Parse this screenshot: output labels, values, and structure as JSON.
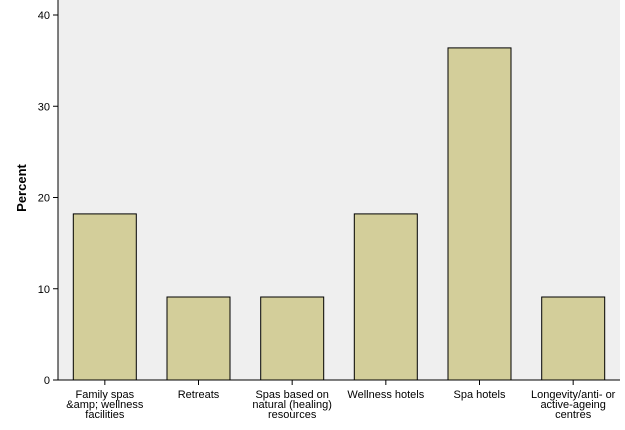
{
  "chart_data": {
    "type": "bar",
    "title": "",
    "xlabel": "",
    "ylabel": "Percent",
    "ylim": [
      0,
      40
    ],
    "yticks": [
      0,
      10,
      20,
      30,
      40
    ],
    "grid": false,
    "categories": [
      [
        "Family spas",
        "&amp; wellness",
        "facilities"
      ],
      [
        "Retreats"
      ],
      [
        "Spas based on",
        "natural (healing)",
        "resources"
      ],
      [
        "Wellness hotels"
      ],
      [
        "Spa hotels"
      ],
      [
        "Longevity/anti- or",
        "active-ageing",
        "centres"
      ]
    ],
    "values": [
      18.2,
      9.1,
      9.1,
      18.2,
      36.4,
      9.1
    ],
    "colors": {
      "bar_fill": "#d3ce9a",
      "bar_stroke": "#000000",
      "plot_background": "#efefef"
    }
  }
}
